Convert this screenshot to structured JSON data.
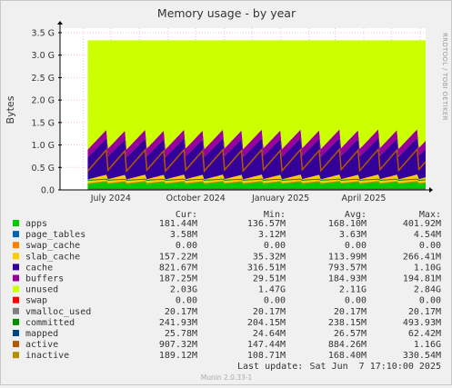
{
  "title": "Memory usage - by year",
  "ylabel": "Bytes",
  "side_label": "RRDTOOL / TOBI OETIKER",
  "footer": "Munin 2.0.33-1",
  "last_update_label": "Last update:",
  "last_update_value": "Sat Jun  7 17:10:00 2025",
  "legend_headers": [
    "Cur:",
    "Min:",
    "Avg:",
    "Max:"
  ],
  "legend": [
    {
      "name": "apps",
      "color": "#00cc00",
      "cur": "181.44M",
      "min": "136.57M",
      "avg": "168.10M",
      "max": "401.92M"
    },
    {
      "name": "page_tables",
      "color": "#0066b3",
      "cur": "3.58M",
      "min": "3.12M",
      "avg": "3.63M",
      "max": "4.54M"
    },
    {
      "name": "swap_cache",
      "color": "#ff8000",
      "cur": "0.00",
      "min": "0.00",
      "avg": "0.00",
      "max": "0.00"
    },
    {
      "name": "slab_cache",
      "color": "#ffcc00",
      "cur": "157.22M",
      "min": "35.32M",
      "avg": "113.99M",
      "max": "266.41M"
    },
    {
      "name": "cache",
      "color": "#330099",
      "cur": "821.67M",
      "min": "316.51M",
      "avg": "793.57M",
      "max": "1.10G"
    },
    {
      "name": "buffers",
      "color": "#990099",
      "cur": "187.25M",
      "min": "29.51M",
      "avg": "184.93M",
      "max": "194.81M"
    },
    {
      "name": "unused",
      "color": "#ccff00",
      "cur": "2.03G",
      "min": "1.47G",
      "avg": "2.11G",
      "max": "2.84G"
    },
    {
      "name": "swap",
      "color": "#ff0000",
      "cur": "0.00",
      "min": "0.00",
      "avg": "0.00",
      "max": "0.00"
    },
    {
      "name": "vmalloc_used",
      "color": "#808080",
      "cur": "20.17M",
      "min": "20.17M",
      "avg": "20.17M",
      "max": "20.17M"
    },
    {
      "name": "committed",
      "color": "#008f00",
      "cur": "241.93M",
      "min": "204.15M",
      "avg": "238.15M",
      "max": "493.93M"
    },
    {
      "name": "mapped",
      "color": "#00487d",
      "cur": "25.78M",
      "min": "24.64M",
      "avg": "26.57M",
      "max": "62.42M"
    },
    {
      "name": "active",
      "color": "#b35a00",
      "cur": "907.32M",
      "min": "147.44M",
      "avg": "884.26M",
      "max": "1.16G"
    },
    {
      "name": "inactive",
      "color": "#b38f00",
      "cur": "189.12M",
      "min": "108.71M",
      "avg": "168.40M",
      "max": "330.54M"
    }
  ],
  "chart_data": {
    "type": "area",
    "title": "Memory usage - by year",
    "ylabel": "Bytes",
    "y_tick_labels": [
      "0.0",
      "0.5 G",
      "1.0 G",
      "1.5 G",
      "2.0 G",
      "2.5 G",
      "3.0 G",
      "3.5 G"
    ],
    "y_tick_values_G": [
      0,
      0.5,
      1.0,
      1.5,
      2.0,
      2.5,
      3.0,
      3.5
    ],
    "ylim_G": [
      0,
      3.6
    ],
    "x_axis": {
      "type": "date",
      "start": "2024-05-07",
      "end": "2025-06-07"
    },
    "x_tick_labels": [
      {
        "label": "July 2024",
        "date": "2024-07-01"
      },
      {
        "label": "October 2024",
        "date": "2024-10-01"
      },
      {
        "label": "January 2025",
        "date": "2025-01-01"
      },
      {
        "label": "April 2025",
        "date": "2025-04-01"
      }
    ],
    "data_start": "2024-06-06",
    "total_memory_G": 3.33,
    "sawtooth_period_days": 21,
    "stack_order": [
      "apps",
      "page_tables",
      "swap_cache",
      "slab_cache",
      "cache",
      "buffers",
      "unused"
    ],
    "line_series": [
      "swap",
      "vmalloc_used",
      "committed",
      "mapped",
      "active",
      "inactive"
    ],
    "stack_ranges_G": {
      "apps": [
        0.13,
        0.18
      ],
      "page_tables": [
        0.0035,
        0.0035
      ],
      "swap_cache": [
        0,
        0
      ],
      "slab_cache": [
        0.04,
        0.16
      ],
      "cache": [
        0.32,
        0.82
      ],
      "buffers": [
        0.03,
        0.19
      ]
    },
    "line_ranges_G": {
      "committed": [
        0.2,
        0.24
      ],
      "mapped": [
        0.025,
        0.026
      ],
      "active": [
        0.15,
        0.91
      ],
      "inactive": [
        0.11,
        0.19
      ],
      "vmalloc_used": [
        0.02,
        0.02
      ]
    },
    "grid": true
  }
}
